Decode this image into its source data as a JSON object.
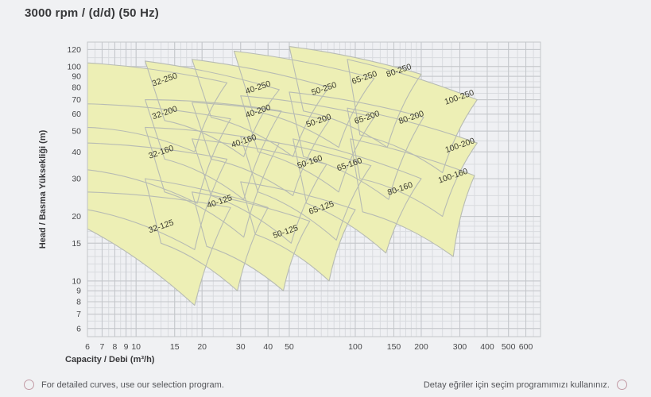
{
  "title": "3000 rpm / (d/d) (50 Hz)",
  "footer": {
    "left_note": "For detailed curves, use our selection program.",
    "right_note": "Detay eğriler için seçim programımızı kullanınız."
  },
  "chart_data": {
    "type": "area",
    "title": "3000 rpm / (d/d) (50 Hz)",
    "xlabel": "Capacity / Debi (m³/h)",
    "ylabel": "Head / Basma Yüksekliği (m)",
    "x_scale": "log",
    "y_scale": "log",
    "x_range": [
      6,
      700
    ],
    "y_range": [
      5.5,
      130
    ],
    "x_ticks": [
      6,
      7,
      8,
      9,
      10,
      15,
      20,
      30,
      40,
      50,
      100,
      150,
      200,
      300,
      400,
      500,
      600
    ],
    "y_ticks": [
      120,
      100,
      90,
      80,
      70,
      60,
      50,
      40,
      30,
      20,
      15,
      10,
      9,
      8,
      7,
      6
    ],
    "x_minor": [
      6,
      6.5,
      7,
      7.5,
      8,
      8.5,
      9,
      9.5,
      10,
      11,
      12,
      13,
      14,
      15,
      16,
      17,
      18,
      19,
      20,
      22.5,
      25,
      27.5,
      30,
      35,
      40,
      45,
      50,
      55,
      60,
      65,
      70,
      75,
      80,
      85,
      90,
      95,
      100,
      110,
      120,
      130,
      140,
      150,
      160,
      170,
      180,
      190,
      200,
      225,
      250,
      275,
      300,
      350,
      400,
      450,
      500,
      550,
      600,
      650,
      700
    ],
    "y_minor": [
      6,
      6.5,
      7,
      7.5,
      8,
      8.5,
      9,
      9.5,
      10,
      11,
      12,
      13,
      14,
      15,
      16,
      17,
      18,
      19,
      20,
      22.5,
      25,
      27.5,
      30,
      35,
      40,
      45,
      50,
      55,
      60,
      65,
      70,
      75,
      80,
      85,
      90,
      95,
      100,
      110,
      120,
      130
    ],
    "grid": true,
    "legend": "none",
    "colors": {
      "region_fill": "#edefb5",
      "region_stroke": "#b7bbb3",
      "grid_minor": "#d9dbdf",
      "grid_major": "#c3c6ca",
      "plot_border": "#c3c6ca",
      "plot_bg": "#eff0f3",
      "tick_text": "#47484a",
      "axis_text": "#3a3a3c",
      "label_text": "#3c3c30"
    },
    "regions": [
      {
        "label": "32-250",
        "pts": [
          [
            6,
            104
          ],
          [
            26,
            84
          ],
          [
            18.5,
            40
          ],
          [
            6,
            52
          ]
        ],
        "label_at": [
          13.5,
          87
        ],
        "rot": -19
      },
      {
        "label": "40-250",
        "pts": [
          [
            11,
            106
          ],
          [
            45,
            78
          ],
          [
            31,
            38
          ],
          [
            13.5,
            56
          ]
        ],
        "label_at": [
          36,
          80
        ],
        "rot": -19
      },
      {
        "label": "50-250",
        "pts": [
          [
            18,
            108
          ],
          [
            76,
            80
          ],
          [
            52,
            38
          ],
          [
            22,
            58
          ]
        ],
        "label_at": [
          72,
          79
        ],
        "rot": -19
      },
      {
        "label": "65-250",
        "pts": [
          [
            28,
            118
          ],
          [
            122,
            88
          ],
          [
            84,
            42
          ],
          [
            34,
            62
          ]
        ],
        "label_at": [
          110,
          89
        ],
        "rot": -19
      },
      {
        "label": "80-250",
        "pts": [
          [
            50,
            124
          ],
          [
            200,
            92
          ],
          [
            140,
            42
          ],
          [
            58,
            62
          ]
        ],
        "label_at": [
          158,
          96
        ],
        "rot": -19
      },
      {
        "label": "100-250",
        "pts": [
          [
            92,
            108
          ],
          [
            360,
            70
          ],
          [
            250,
            32
          ],
          [
            105,
            48
          ]
        ],
        "label_at": [
          298,
          72
        ],
        "rot": -19
      },
      {
        "label": "32-200",
        "pts": [
          [
            6,
            67
          ],
          [
            27,
            57
          ],
          [
            19,
            23
          ],
          [
            6,
            33
          ]
        ],
        "label_at": [
          13.5,
          61
        ],
        "rot": -19
      },
      {
        "label": "40-200",
        "pts": [
          [
            11,
            70
          ],
          [
            46,
            62
          ],
          [
            31,
            24
          ],
          [
            13.5,
            37
          ]
        ],
        "label_at": [
          36,
          62
        ],
        "rot": -19
      },
      {
        "label": "50-200",
        "pts": [
          [
            18,
            68
          ],
          [
            76,
            56
          ],
          [
            52,
            25
          ],
          [
            22,
            37
          ]
        ],
        "label_at": [
          68,
          56
        ],
        "rot": -19
      },
      {
        "label": "65-200",
        "pts": [
          [
            30,
            73
          ],
          [
            122,
            58
          ],
          [
            84,
            26
          ],
          [
            36,
            40
          ]
        ],
        "label_at": [
          113,
          58
        ],
        "rot": -19
      },
      {
        "label": "80-200",
        "pts": [
          [
            50,
            76
          ],
          [
            205,
            58
          ],
          [
            142,
            24
          ],
          [
            58,
            38
          ]
        ],
        "label_at": [
          180,
          58
        ],
        "rot": -19
      },
      {
        "label": "100-200",
        "pts": [
          [
            92,
            64
          ],
          [
            360,
            44
          ],
          [
            250,
            20
          ],
          [
            105,
            30
          ]
        ],
        "label_at": [
          300,
          43
        ],
        "rot": -19
      },
      {
        "label": "32-160",
        "pts": [
          [
            6,
            44
          ],
          [
            26,
            37
          ],
          [
            18.5,
            14
          ],
          [
            6,
            21.5
          ]
        ],
        "label_at": [
          13,
          40
        ],
        "rot": -19
      },
      {
        "label": "40-160",
        "pts": [
          [
            11,
            52
          ],
          [
            45,
            44
          ],
          [
            31,
            16
          ],
          [
            13.5,
            26
          ]
        ],
        "label_at": [
          31,
          45
        ],
        "rot": -19
      },
      {
        "label": "50-160",
        "pts": [
          [
            18,
            46
          ],
          [
            74,
            35
          ],
          [
            51,
            15
          ],
          [
            22,
            25
          ]
        ],
        "label_at": [
          62,
          36
        ],
        "rot": -19
      },
      {
        "label": "65-160",
        "pts": [
          [
            30,
            47
          ],
          [
            118,
            34.5
          ],
          [
            82,
            15.5
          ],
          [
            36,
            26
          ]
        ],
        "label_at": [
          94,
          35
        ],
        "rot": -19
      },
      {
        "label": "80-160",
        "pts": [
          [
            52,
            46
          ],
          [
            200,
            30
          ],
          [
            138,
            13.5
          ],
          [
            60,
            23
          ]
        ],
        "label_at": [
          160,
          27
        ],
        "rot": -19
      },
      {
        "label": "100-160",
        "pts": [
          [
            95,
            46
          ],
          [
            350,
            31
          ],
          [
            280,
            13
          ],
          [
            108,
            21
          ]
        ],
        "label_at": [
          279,
          31
        ],
        "rot": -19
      },
      {
        "label": "32-125",
        "pts": [
          [
            6,
            26
          ],
          [
            27,
            22
          ],
          [
            18.5,
            7.7
          ],
          [
            6,
            17.5
          ]
        ],
        "label_at": [
          13,
          18
        ],
        "rot": -19
      },
      {
        "label": "40-125",
        "pts": [
          [
            11,
            30
          ],
          [
            40,
            22
          ],
          [
            29,
            9
          ],
          [
            13,
            15
          ]
        ],
        "label_at": [
          24,
          23.5
        ],
        "rot": -19
      },
      {
        "label": "50-125",
        "pts": [
          [
            18,
            26
          ],
          [
            62,
            19
          ],
          [
            47,
            9
          ],
          [
            21,
            14.5
          ]
        ],
        "label_at": [
          48,
          17
        ],
        "rot": -19
      },
      {
        "label": "65-125",
        "pts": [
          [
            30,
            29
          ],
          [
            100,
            21.5
          ],
          [
            76,
            10
          ],
          [
            35,
            16.5
          ]
        ],
        "label_at": [
          70,
          22
        ],
        "rot": -19
      }
    ]
  }
}
